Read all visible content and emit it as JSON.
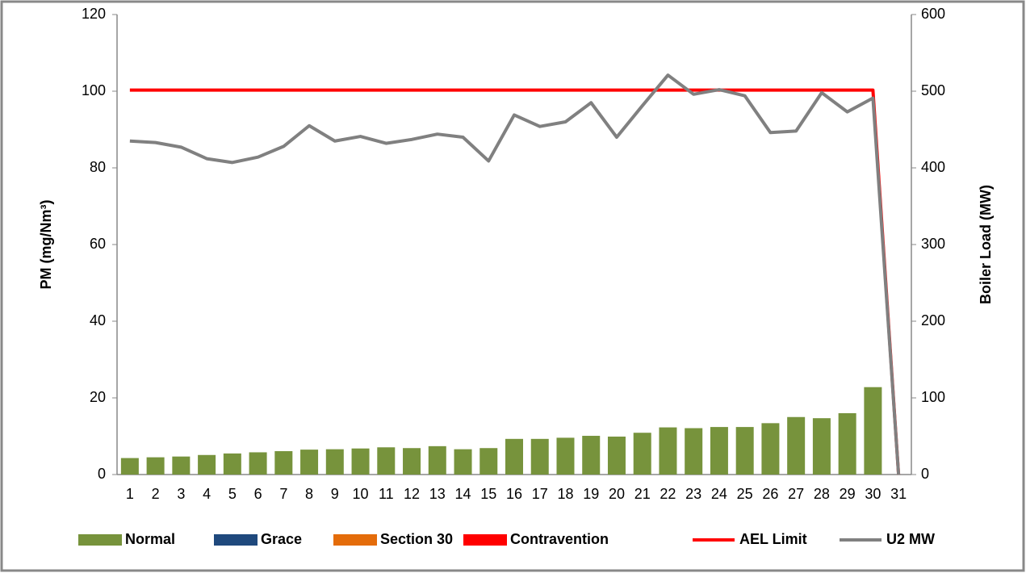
{
  "chart_data": {
    "type": "bar",
    "y_label": "PM (mg/Nm³)",
    "y2_label": "Boiler Load (MW)",
    "categories": [
      "1",
      "2",
      "3",
      "4",
      "5",
      "6",
      "7",
      "8",
      "9",
      "10",
      "11",
      "12",
      "13",
      "14",
      "15",
      "16",
      "17",
      "18",
      "19",
      "20",
      "21",
      "22",
      "23",
      "24",
      "25",
      "26",
      "27",
      "28",
      "29",
      "30",
      "31"
    ],
    "ylim": [
      0,
      120
    ],
    "yticks": [
      0,
      20,
      40,
      60,
      80,
      100,
      120
    ],
    "y2lim": [
      0,
      600
    ],
    "y2ticks": [
      0,
      100,
      200,
      300,
      400,
      500,
      600
    ],
    "grid": false,
    "legend": "bottom",
    "series": [
      {
        "name": "Normal",
        "type": "bar",
        "color": "#77933c",
        "values": [
          4.3,
          4.5,
          4.7,
          5.1,
          5.5,
          5.8,
          6.1,
          6.5,
          6.6,
          6.8,
          7.1,
          6.9,
          7.4,
          6.6,
          6.9,
          9.3,
          9.3,
          9.6,
          10.1,
          9.9,
          10.9,
          12.3,
          12.1,
          12.4,
          12.4,
          13.4,
          15.0,
          14.7,
          16.0,
          22.8,
          null
        ]
      },
      {
        "name": "Grace",
        "type": "bar",
        "color": "#1f497d",
        "values": [
          null,
          null,
          null,
          null,
          null,
          null,
          null,
          null,
          null,
          null,
          null,
          null,
          null,
          null,
          null,
          null,
          null,
          null,
          null,
          null,
          null,
          null,
          null,
          null,
          null,
          null,
          null,
          null,
          null,
          null,
          null
        ]
      },
      {
        "name": "Section 30",
        "type": "bar",
        "color": "#e46c0a",
        "values": [
          null,
          null,
          null,
          null,
          null,
          null,
          null,
          null,
          null,
          null,
          null,
          null,
          null,
          null,
          null,
          null,
          null,
          null,
          null,
          null,
          null,
          null,
          null,
          null,
          null,
          null,
          null,
          null,
          null,
          null,
          null
        ]
      },
      {
        "name": "Contravention",
        "type": "bar",
        "color": "#ff0000",
        "values": [
          null,
          null,
          null,
          null,
          null,
          null,
          null,
          null,
          null,
          null,
          null,
          null,
          null,
          null,
          null,
          null,
          null,
          null,
          null,
          null,
          null,
          null,
          null,
          null,
          null,
          null,
          null,
          null,
          null,
          null,
          null
        ]
      },
      {
        "name": "AEL Limit",
        "type": "line",
        "color": "#ff0000",
        "values": [
          100.3,
          100.3,
          100.3,
          100.3,
          100.3,
          100.3,
          100.3,
          100.3,
          100.3,
          100.3,
          100.3,
          100.3,
          100.3,
          100.3,
          100.3,
          100.3,
          100.3,
          100.3,
          100.3,
          100.3,
          100.3,
          100.3,
          100.3,
          100.3,
          100.3,
          100.3,
          100.3,
          100.3,
          100.3,
          100.3,
          0
        ]
      },
      {
        "name": "U2 MW",
        "type": "line",
        "axis": "y2",
        "color": "#808080",
        "values": [
          435,
          433,
          427,
          412,
          407,
          414,
          428,
          455,
          435,
          441,
          432,
          437,
          444,
          440,
          409,
          469,
          454,
          460,
          485,
          440,
          481,
          521,
          496,
          502,
          494,
          446,
          448,
          498,
          473,
          491,
          0
        ]
      }
    ]
  }
}
